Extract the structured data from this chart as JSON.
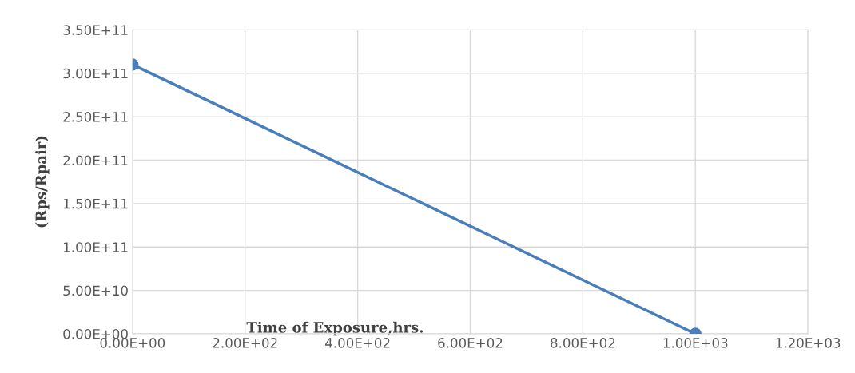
{
  "chart_data": {
    "type": "line",
    "xlabel": "Time of Exposure,hrs.",
    "ylabel": "(Rps/Rpair)",
    "x": [
      0,
      1000
    ],
    "series": [
      {
        "color": "#4a7ebb",
        "values": [
          310000000000.0,
          0
        ]
      }
    ],
    "xlim": [
      0,
      1200
    ],
    "xticks": [
      {
        "value": 0,
        "label": "0.00E+00"
      },
      {
        "value": 200,
        "label": "2.00E+02"
      },
      {
        "value": 400,
        "label": "4.00E+02"
      },
      {
        "value": 600,
        "label": "6.00E+02"
      },
      {
        "value": 800,
        "label": "8.00E+02"
      },
      {
        "value": 1000,
        "label": "1.00E+03"
      },
      {
        "value": 1200,
        "label": "1.20E+03"
      }
    ],
    "ylim": [
      0,
      350000000000.0
    ],
    "yticks": [
      {
        "value": 0,
        "label": "0.00E+00"
      },
      {
        "value": 50000000000.0,
        "label": "5.00E+10"
      },
      {
        "value": 100000000000.0,
        "label": "1.00E+11"
      },
      {
        "value": 150000000000.0,
        "label": "1.50E+11"
      },
      {
        "value": 200000000000.0,
        "label": "2.00E+11"
      },
      {
        "value": 250000000000.0,
        "label": "2.50E+11"
      },
      {
        "value": 300000000000.0,
        "label": "3.00E+11"
      },
      {
        "value": 350000000000.0,
        "label": "3.50E+11"
      }
    ],
    "grid": true,
    "marker": "circle",
    "line_style": "solid"
  }
}
